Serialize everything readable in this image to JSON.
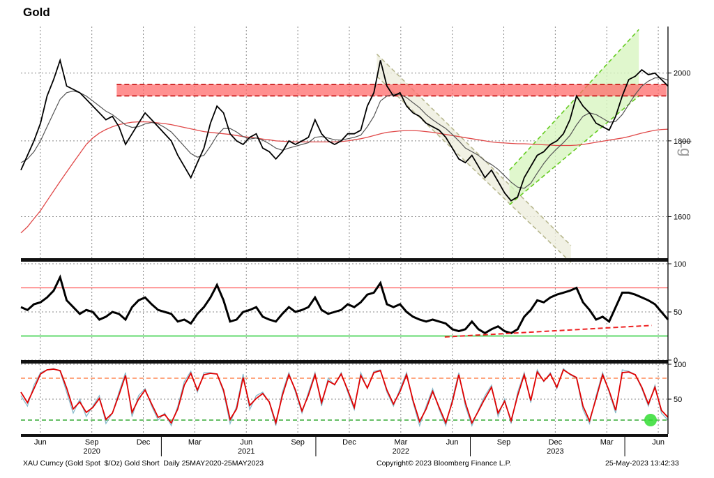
{
  "chart_data": [
    {
      "type": "line",
      "title": "Gold",
      "scale": "log",
      "scale_label": "Lg",
      "ylim": [
        1500,
        2150
      ],
      "y_ticks": [
        1600,
        1800,
        2000
      ],
      "grid": true,
      "x_month_labels": [
        "Jun",
        "Sep",
        "Dec",
        "Mar",
        "Jun",
        "Sep",
        "Dec",
        "Mar",
        "Jun",
        "Sep",
        "Dec",
        "Mar",
        "Jun"
      ],
      "x_year_labels": [
        "2020",
        "2021",
        "2022",
        "2023"
      ],
      "series": [
        {
          "values": [
            1720,
            1760,
            1800,
            1850,
            1930,
            1980,
            2040,
            1960,
            1950,
            1940,
            1920,
            1900,
            1880,
            1860,
            1870,
            1840,
            1790,
            1820,
            1850,
            1880,
            1860,
            1840,
            1820,
            1800,
            1760,
            1730,
            1700,
            1740,
            1780,
            1850,
            1900,
            1880,
            1820,
            1800,
            1790,
            1810,
            1820,
            1780,
            1770,
            1750,
            1770,
            1800,
            1790,
            1800,
            1810,
            1860,
            1820,
            1800,
            1790,
            1800,
            1820,
            1820,
            1830,
            1900,
            1940,
            2040,
            1960,
            1930,
            1940,
            1900,
            1880,
            1870,
            1850,
            1840,
            1830,
            1810,
            1780,
            1750,
            1740,
            1760,
            1730,
            1700,
            1720,
            1690,
            1660,
            1640,
            1650,
            1700,
            1730,
            1760,
            1770,
            1790,
            1800,
            1820,
            1860,
            1930,
            1900,
            1880,
            1850,
            1840,
            1830,
            1870,
            1930,
            1980,
            1990,
            2010,
            1995,
            2000,
            1980,
            1960
          ]
        },
        {
          "values": [
            1740,
            1750,
            1770,
            1800,
            1840,
            1880,
            1920,
            1940,
            1945,
            1940,
            1930,
            1915,
            1900,
            1885,
            1875,
            1860,
            1845,
            1838,
            1840,
            1848,
            1852,
            1848,
            1838,
            1825,
            1805,
            1785,
            1765,
            1755,
            1760,
            1785,
            1815,
            1835,
            1835,
            1825,
            1812,
            1805,
            1808,
            1802,
            1792,
            1780,
            1774,
            1780,
            1785,
            1790,
            1795,
            1810,
            1812,
            1808,
            1803,
            1802,
            1806,
            1810,
            1816,
            1840,
            1870,
            1915,
            1930,
            1935,
            1935,
            1925,
            1910,
            1895,
            1875,
            1860,
            1847,
            1835,
            1818,
            1800,
            1780,
            1770,
            1760,
            1745,
            1735,
            1722,
            1705,
            1688,
            1675,
            1672,
            1685,
            1712,
            1738,
            1760,
            1778,
            1795,
            1815,
            1845,
            1870,
            1880,
            1875,
            1864,
            1853,
            1855,
            1875,
            1905,
            1935,
            1960,
            1975,
            1985,
            1985,
            1978
          ]
        },
        {
          "values": [
            1560,
            1575,
            1595,
            1615,
            1640,
            1665,
            1690,
            1715,
            1740,
            1765,
            1790,
            1808,
            1822,
            1832,
            1840,
            1846,
            1850,
            1853,
            1854,
            1854,
            1853,
            1851,
            1849,
            1846,
            1842,
            1838,
            1834,
            1830,
            1826,
            1824,
            1822,
            1820,
            1818,
            1815,
            1812,
            1810,
            1808,
            1805,
            1803,
            1800,
            1799,
            1798,
            1797,
            1797,
            1797,
            1797,
            1797,
            1797,
            1797,
            1798,
            1800,
            1803,
            1806,
            1810,
            1815,
            1820,
            1824,
            1826,
            1828,
            1829,
            1829,
            1828,
            1826,
            1824,
            1821,
            1818,
            1815,
            1812,
            1809,
            1806,
            1803,
            1800,
            1797,
            1795,
            1794,
            1793,
            1792,
            1792,
            1791,
            1790,
            1789,
            1788,
            1787,
            1787,
            1787,
            1788,
            1790,
            1793,
            1796,
            1799,
            1802,
            1805,
            1808,
            1812,
            1817,
            1822,
            1826,
            1830,
            1832,
            1833
          ]
        }
      ],
      "resistance_band": [
        1930,
        1965
      ],
      "downtrend_channel": {
        "start": {
          "x": 0.55,
          "upper": 2060,
          "lower": 1990
        },
        "end": {
          "x": 0.85,
          "upper": 1530,
          "lower": 1490
        }
      },
      "uptrend_channel": {
        "start": {
          "x": 0.755,
          "upper": 1720,
          "lower": 1630
        },
        "end": {
          "x": 0.955,
          "upper": 2140,
          "lower": 1930
        }
      }
    },
    {
      "type": "line",
      "ylim": [
        0,
        100
      ],
      "y_ticks": [
        0,
        50,
        100
      ],
      "overbought": 75,
      "oversold": 25,
      "series": [
        {
          "values": [
            55,
            52,
            58,
            60,
            65,
            72,
            86,
            62,
            55,
            48,
            52,
            50,
            42,
            45,
            50,
            48,
            42,
            55,
            62,
            65,
            58,
            52,
            50,
            48,
            40,
            42,
            38,
            48,
            55,
            65,
            78,
            62,
            40,
            42,
            50,
            52,
            55,
            45,
            42,
            40,
            48,
            55,
            50,
            52,
            55,
            65,
            52,
            48,
            50,
            52,
            58,
            55,
            60,
            68,
            70,
            80,
            58,
            55,
            58,
            50,
            45,
            42,
            40,
            42,
            40,
            38,
            32,
            30,
            32,
            40,
            32,
            28,
            32,
            35,
            30,
            28,
            32,
            45,
            52,
            62,
            60,
            65,
            68,
            70,
            72,
            75,
            60,
            52,
            42,
            45,
            40,
            55,
            70,
            70,
            68,
            65,
            62,
            58,
            50,
            42
          ]
        }
      ],
      "support_line": {
        "start": {
          "x": 0.655,
          "y": 24
        },
        "end": {
          "x": 0.975,
          "y": 36
        }
      }
    },
    {
      "type": "line",
      "ylim": [
        0,
        100
      ],
      "y_ticks": [
        50,
        100
      ],
      "overbought": 80,
      "oversold": 20,
      "series": [
        {
          "values": [
            55,
            40,
            70,
            88,
            92,
            94,
            90,
            60,
            30,
            50,
            25,
            40,
            55,
            15,
            30,
            60,
            88,
            25,
            55,
            65,
            40,
            20,
            30,
            12,
            40,
            75,
            90,
            60,
            88,
            88,
            86,
            60,
            15,
            40,
            86,
            35,
            55,
            60,
            45,
            12,
            60,
            88,
            60,
            30,
            60,
            88,
            40,
            80,
            70,
            88,
            60,
            35,
            88,
            65,
            90,
            92,
            60,
            40,
            65,
            88,
            45,
            12,
            40,
            65,
            35,
            12,
            50,
            88,
            40,
            12,
            35,
            55,
            70,
            25,
            50,
            15,
            60,
            88,
            45,
            92,
            75,
            88,
            65,
            94,
            85,
            80,
            35,
            15,
            55,
            88,
            60,
            30,
            92,
            90,
            85,
            65,
            40,
            70,
            30,
            20
          ]
        },
        {
          "values": [
            60,
            45,
            65,
            86,
            92,
            93,
            91,
            66,
            36,
            46,
            31,
            38,
            51,
            21,
            30,
            56,
            84,
            31,
            50,
            63,
            43,
            24,
            28,
            16,
            36,
            70,
            87,
            63,
            85,
            87,
            86,
            63,
            21,
            36,
            81,
            41,
            51,
            58,
            46,
            16,
            55,
            85,
            63,
            33,
            56,
            85,
            45,
            76,
            71,
            86,
            63,
            38,
            84,
            66,
            88,
            91,
            63,
            43,
            61,
            85,
            48,
            18,
            36,
            61,
            38,
            16,
            46,
            85,
            45,
            16,
            33,
            51,
            67,
            30,
            47,
            19,
            55,
            85,
            48,
            89,
            76,
            86,
            67,
            92,
            86,
            81,
            40,
            19,
            51,
            85,
            62,
            34,
            88,
            89,
            85,
            67,
            43,
            67,
            34,
            24
          ]
        }
      ]
    }
  ],
  "footer": {
    "left": "XAU Curncy (Gold Spot  $/Oz) Gold Short  Daily 25MAY2020-25MAY2023",
    "center": "Copyright© 2023 Bloomberg Finance L.P.",
    "right": "25-May-2023 13:42:33"
  },
  "colors": {
    "price": "#000000",
    "sma_short": "#555555",
    "sma_long": "#e04848",
    "band_fill": "#ff6b6b",
    "band_line": "#c00000",
    "down_channel_fill": "#eeeedd",
    "down_channel_line": "#b8b890",
    "up_channel_fill": "#d8f5c0",
    "up_channel_line": "#66cc22",
    "rsi": "#000000",
    "overbought_line": "#ff5555",
    "oversold_line": "#22cc33",
    "stoch_k": "#88bbcc",
    "stoch_d": "#e00000",
    "stoch_upper": "#ff8855",
    "stoch_lower": "#33aa33",
    "highlight": "#33dd33",
    "grid": "#888888"
  }
}
